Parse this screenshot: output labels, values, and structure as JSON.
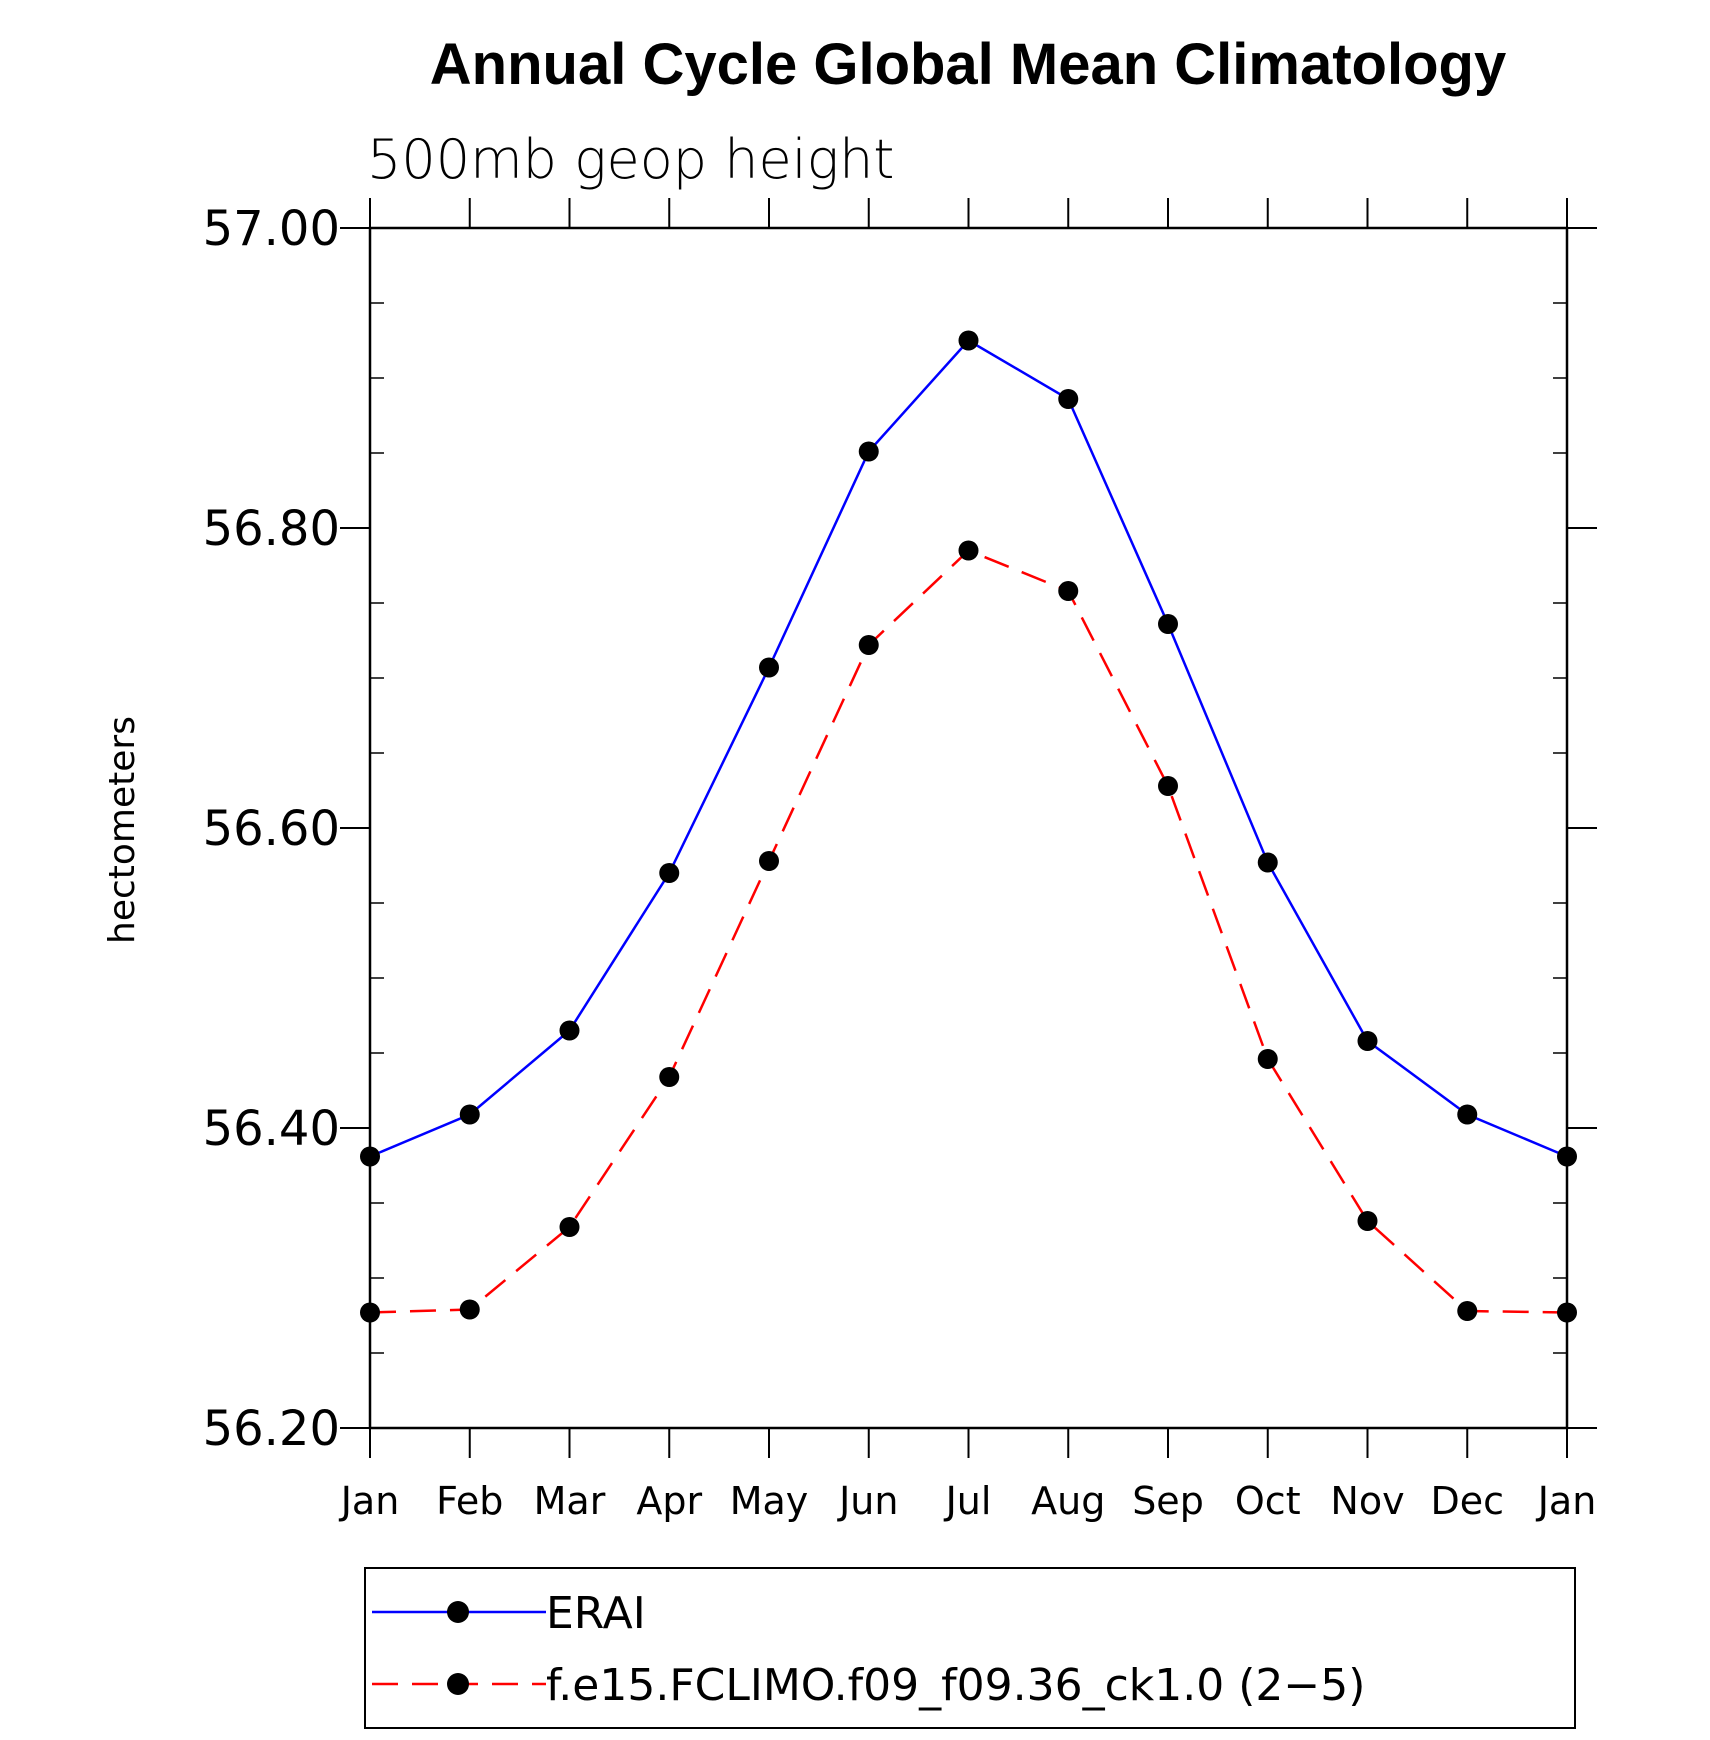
{
  "chart_data": {
    "type": "line",
    "title": "Annual Cycle Global Mean Climatology",
    "subtitle": "500mb geop height",
    "xlabel": "",
    "ylabel": "hectometers",
    "categories": [
      "Jan",
      "Feb",
      "Mar",
      "Apr",
      "May",
      "Jun",
      "Jul",
      "Aug",
      "Sep",
      "Oct",
      "Nov",
      "Dec",
      "Jan"
    ],
    "ylim": [
      56.2,
      57.0
    ],
    "yticks": [
      "56.20",
      "56.40",
      "56.60",
      "56.80",
      "57.00"
    ],
    "legend_position": "bottom",
    "series": [
      {
        "name": "ERAI",
        "color": "#0000ff",
        "line_style": "solid",
        "marker": "filled-circle",
        "values": [
          56.381,
          56.409,
          56.465,
          56.57,
          56.707,
          56.851,
          56.925,
          56.886,
          56.736,
          56.577,
          56.458,
          56.409,
          56.381
        ]
      },
      {
        "name": "f.e15.FCLIMO.f09_f09.36_ck1.0 (2−5)",
        "color": "#ff0000",
        "line_style": "dashed",
        "marker": "filled-circle",
        "values": [
          56.277,
          56.279,
          56.334,
          56.434,
          56.578,
          56.722,
          56.785,
          56.758,
          56.628,
          56.446,
          56.338,
          56.278,
          56.277
        ]
      }
    ]
  }
}
